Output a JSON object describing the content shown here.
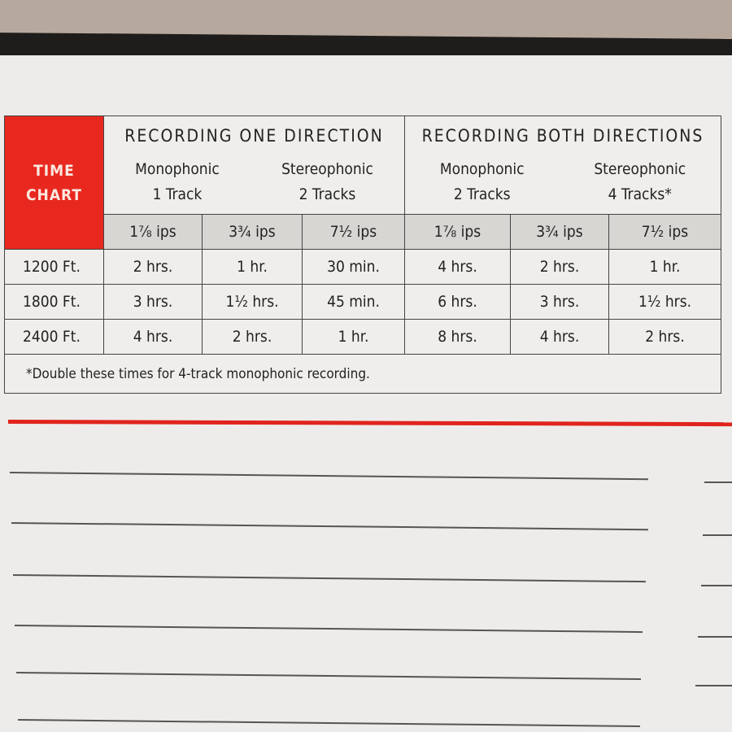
{
  "chart": {
    "title_line1": "TIME",
    "title_line2": "CHART",
    "groups": [
      {
        "title": "RECORDING ONE DIRECTION",
        "subs": [
          {
            "mode": "Monophonic",
            "tracks": "1 Track"
          },
          {
            "mode": "Stereophonic",
            "tracks": "2 Tracks"
          }
        ]
      },
      {
        "title": "RECORDING BOTH DIRECTIONS",
        "subs": [
          {
            "mode": "Monophonic",
            "tracks": "2 Tracks"
          },
          {
            "mode": "Stereophonic",
            "tracks": "4 Tracks*"
          }
        ]
      }
    ],
    "speeds": [
      "1⅞ ips",
      "3¾ ips",
      "7½ ips",
      "1⅞ ips",
      "3¾ ips",
      "7½ ips"
    ],
    "rows": [
      {
        "length": "1200 Ft.",
        "times": [
          "2 hrs.",
          "1 hr.",
          "30 min.",
          "4 hrs.",
          "2 hrs.",
          "1 hr."
        ]
      },
      {
        "length": "1800 Ft.",
        "times": [
          "3 hrs.",
          "1½ hrs.",
          "45 min.",
          "6 hrs.",
          "3 hrs.",
          "1½ hrs."
        ]
      },
      {
        "length": "2400 Ft.",
        "times": [
          "4 hrs.",
          "2 hrs.",
          "1 hr.",
          "8 hrs.",
          "4 hrs.",
          "2 hrs."
        ]
      }
    ],
    "footnote": "*Double these times for 4-track monophonic recording."
  },
  "colors": {
    "accent": "#e8281f"
  }
}
